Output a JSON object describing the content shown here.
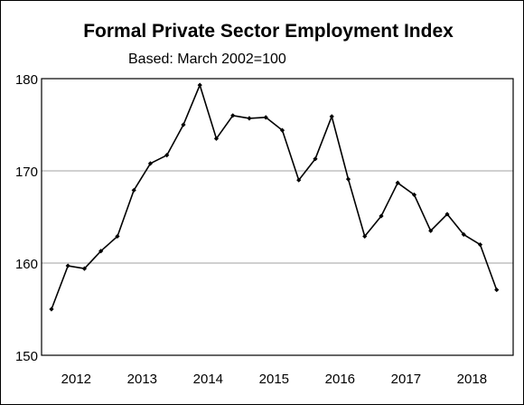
{
  "chart_data": {
    "type": "line",
    "title": "Formal Private Sector Employment Index",
    "subtitle": "Based:  March  2002=100",
    "xlabel": "",
    "ylabel": "",
    "x_tick_labels": [
      "2012",
      "2013",
      "2014",
      "2015",
      "2016",
      "2017",
      "2018"
    ],
    "y_ticks": [
      150,
      160,
      170,
      180
    ],
    "ylim": [
      150,
      180
    ],
    "grid": "horizontal",
    "line_color": "#000000",
    "grid_color": "#a0a0a0",
    "series": [
      {
        "x": [
          2011.75,
          2012.0,
          2012.25,
          2012.5,
          2012.75,
          2013.0,
          2013.25,
          2013.5,
          2013.75,
          2014.0,
          2014.25,
          2014.5,
          2014.75,
          2015.0,
          2015.25,
          2015.5,
          2015.75,
          2016.0,
          2016.25,
          2016.5,
          2016.75,
          2017.0,
          2017.25,
          2017.5,
          2017.75,
          2018.0,
          2018.25,
          2018.5
        ],
        "values": [
          155.0,
          159.7,
          159.4,
          161.3,
          162.9,
          167.9,
          170.8,
          171.7,
          175.0,
          179.3,
          173.5,
          176.0,
          175.7,
          175.8,
          174.4,
          169.0,
          171.3,
          175.9,
          169.1,
          162.9,
          165.1,
          168.7,
          167.4,
          163.5,
          165.3,
          163.1,
          162.0,
          157.1
        ]
      }
    ]
  }
}
